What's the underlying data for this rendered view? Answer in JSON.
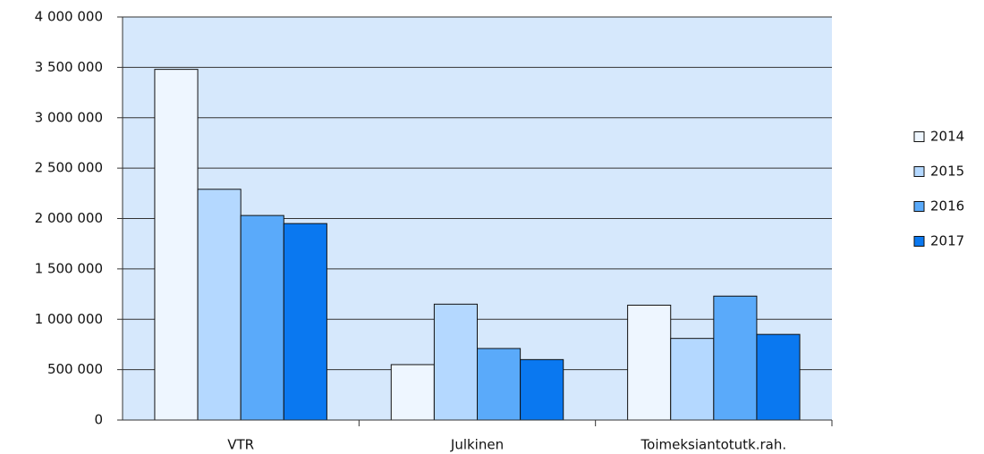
{
  "chart_data": {
    "type": "bar",
    "categories": [
      "VTR",
      "Julkinen",
      "Toimeksiantotutk.rah."
    ],
    "series": [
      {
        "name": "2014",
        "color": "#eef6ff",
        "values": [
          3480000,
          550000,
          1140000
        ]
      },
      {
        "name": "2015",
        "color": "#b4d8ff",
        "values": [
          2290000,
          1150000,
          810000
        ]
      },
      {
        "name": "2016",
        "color": "#5aaafa",
        "values": [
          2030000,
          710000,
          1230000
        ]
      },
      {
        "name": "2017",
        "color": "#0a78f0",
        "values": [
          1950000,
          600000,
          850000
        ]
      }
    ],
    "ylim": [
      0,
      4000000
    ],
    "yticks": [
      0,
      {
        "value": 500000,
        "label": "500 000"
      },
      {
        "value": 1000000,
        "label": "1 000 000"
      },
      {
        "value": 1500000,
        "label": "1 500 000"
      },
      {
        "value": 2000000,
        "label": "2 000 000"
      },
      {
        "value": 2500000,
        "label": "2 500 000"
      },
      {
        "value": 3000000,
        "label": "3 000 000"
      },
      {
        "value": 3500000,
        "label": "3 500 000"
      },
      {
        "value": 4000000,
        "label": "4 000 000"
      }
    ],
    "grid": true,
    "plot_background": "#d6e8fc",
    "legend": "right"
  }
}
